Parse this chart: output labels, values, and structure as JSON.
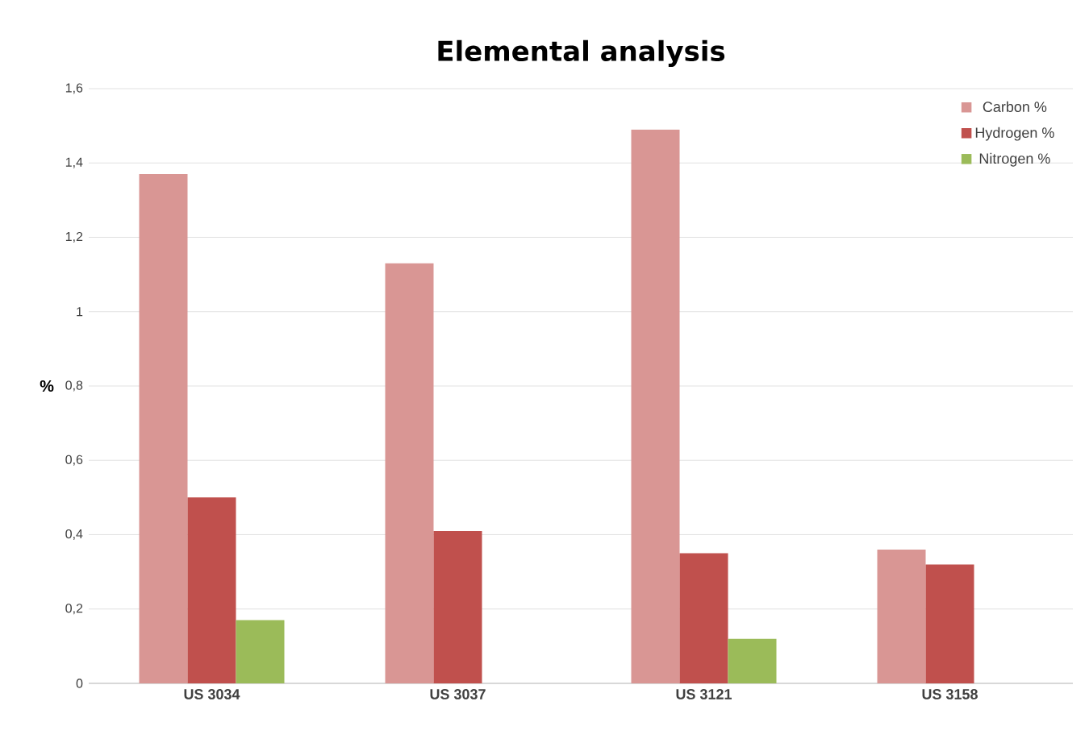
{
  "chart_data": {
    "type": "bar",
    "title": "Elemental analysis",
    "ylabel": "%",
    "categories": [
      "US 3034",
      "US 3037",
      "US 3121",
      "US 3158"
    ],
    "series": [
      {
        "name": "Carbon %",
        "color": "#d99694",
        "values": [
          1.37,
          1.13,
          1.49,
          0.36
        ]
      },
      {
        "name": "Hydrogen %",
        "color": "#c0504d",
        "values": [
          0.5,
          0.41,
          0.35,
          0.32
        ]
      },
      {
        "name": "Nitrogen %",
        "color": "#9bbb59",
        "values": [
          0.17,
          null,
          0.12,
          null
        ]
      }
    ],
    "ylim": [
      0,
      1.6
    ],
    "yticks": [
      {
        "value": 0,
        "label": "0"
      },
      {
        "value": 0.2,
        "label": "0,2"
      },
      {
        "value": 0.4,
        "label": "0,4"
      },
      {
        "value": 0.6,
        "label": "0,6"
      },
      {
        "value": 0.8,
        "label": "0,8"
      },
      {
        "value": 1,
        "label": "1"
      },
      {
        "value": 1.2,
        "label": "1,2"
      },
      {
        "value": 1.4,
        "label": "1,4"
      },
      {
        "value": 1.6,
        "label": "1,6"
      }
    ],
    "grid": "y",
    "legend": "top right"
  }
}
